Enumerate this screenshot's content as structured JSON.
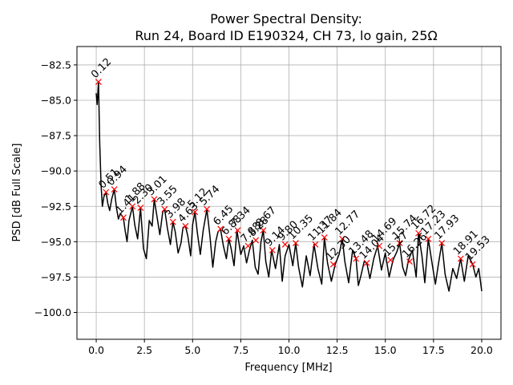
{
  "chart_data": {
    "type": "line",
    "title": "Power Spectral Density:",
    "subtitle": "Run 24, Board ID E190324, CH 73, lo gain, 25Ω",
    "xlabel": "Frequency [MHz]",
    "ylabel": "PSD [dB Full Scale]",
    "xlim": [
      -1.0,
      21.0
    ],
    "ylim": [
      -101.9,
      -81.2
    ],
    "xticks": [
      0.0,
      2.5,
      5.0,
      7.5,
      10.0,
      12.5,
      15.0,
      17.5,
      20.0
    ],
    "xtick_labels": [
      "0.0",
      "2.5",
      "5.0",
      "7.5",
      "10.0",
      "12.5",
      "15.0",
      "17.5",
      "20.0"
    ],
    "yticks": [
      -82.5,
      -85.0,
      -87.5,
      -90.0,
      -92.5,
      -95.0,
      -97.5,
      -100.0
    ],
    "ytick_labels": [
      "−82.5",
      "−85.0",
      "−87.5",
      "−90.0",
      "−92.5",
      "−95.0",
      "−97.5",
      "−100.0"
    ],
    "grid": true,
    "line_color": "#000000",
    "marker_color": "#ff0000",
    "series": [
      {
        "x": [
          0.0,
          0.05,
          0.12,
          0.18,
          0.25,
          0.32,
          0.4,
          0.51,
          0.6,
          0.7,
          0.8,
          0.94,
          1.05,
          1.15,
          1.25,
          1.41,
          1.5,
          1.6,
          1.7,
          1.88,
          2.0,
          2.15,
          2.3,
          2.45,
          2.6,
          2.75,
          2.9,
          3.01,
          3.15,
          3.3,
          3.45,
          3.55,
          3.7,
          3.85,
          3.98,
          4.1,
          4.25,
          4.4,
          4.5,
          4.63,
          4.75,
          4.9,
          5.0,
          5.12,
          5.25,
          5.4,
          5.55,
          5.74,
          5.9,
          6.05,
          6.2,
          6.32,
          6.45,
          6.6,
          6.75,
          6.88,
          7.0,
          7.15,
          7.3,
          7.5,
          7.65,
          7.8,
          7.95,
          8.1,
          8.25,
          8.4,
          8.55,
          8.67,
          8.8,
          8.95,
          9.1,
          9.3,
          9.5,
          9.65,
          9.8,
          10.0,
          10.2,
          10.35,
          10.5,
          10.7,
          10.9,
          11.1,
          11.3,
          11.5,
          11.7,
          11.84,
          12.0,
          12.2,
          12.4,
          12.6,
          12.77,
          12.9,
          13.1,
          13.3,
          13.48,
          13.6,
          13.75,
          13.9,
          14.04,
          14.2,
          14.4,
          14.6,
          14.8,
          15.0,
          15.2,
          15.4,
          15.6,
          15.74,
          15.9,
          16.05,
          16.2,
          16.4,
          16.6,
          16.72,
          16.9,
          17.05,
          17.23,
          17.4,
          17.6,
          17.75,
          17.93,
          18.1,
          18.3,
          18.5,
          18.7,
          18.91,
          19.1,
          19.3,
          19.53,
          19.7,
          19.85,
          20.0
        ],
        "y": [
          -84.5,
          -85.3,
          -83.7,
          -88.0,
          -91.0,
          -92.5,
          -91.8,
          -91.5,
          -92.3,
          -92.8,
          -92.0,
          -91.3,
          -92.6,
          -93.4,
          -93.0,
          -93.3,
          -94.2,
          -95.0,
          -93.5,
          -92.5,
          -93.8,
          -94.8,
          -92.6,
          -95.5,
          -96.2,
          -93.5,
          -93.9,
          -92.0,
          -93.2,
          -94.5,
          -92.9,
          -92.7,
          -94.1,
          -95.2,
          -93.6,
          -94.3,
          -95.8,
          -95.1,
          -94.0,
          -93.9,
          -94.6,
          -96.0,
          -93.8,
          -92.9,
          -94.4,
          -95.9,
          -94.2,
          -92.7,
          -94.6,
          -96.8,
          -95.0,
          -94.3,
          -94.1,
          -95.3,
          -96.2,
          -94.8,
          -95.5,
          -96.7,
          -94.2,
          -95.9,
          -95.3,
          -96.5,
          -95.6,
          -94.9,
          -96.8,
          -97.3,
          -95.0,
          -94.2,
          -96.4,
          -97.5,
          -95.6,
          -96.9,
          -95.2,
          -97.8,
          -96.0,
          -95.2,
          -96.7,
          -95.1,
          -96.8,
          -98.2,
          -96.0,
          -97.4,
          -95.2,
          -96.9,
          -98.0,
          -94.7,
          -96.5,
          -97.8,
          -96.6,
          -95.9,
          -94.8,
          -96.4,
          -97.9,
          -95.6,
          -96.2,
          -98.1,
          -97.3,
          -96.4,
          -96.5,
          -97.6,
          -96.2,
          -95.3,
          -97.0,
          -95.8,
          -97.5,
          -96.3,
          -95.7,
          -95.1,
          -96.8,
          -97.4,
          -96.3,
          -95.6,
          -97.5,
          -94.4,
          -96.0,
          -97.9,
          -94.8,
          -96.3,
          -98.0,
          -96.6,
          -95.1,
          -97.3,
          -98.5,
          -96.9,
          -97.6,
          -96.2,
          -97.8,
          -96.0,
          -96.6,
          -97.5,
          -96.9,
          -98.5
        ]
      }
    ],
    "peaks": [
      {
        "label": "0.12",
        "x": 0.12,
        "y": -83.7
      },
      {
        "label": "0.51",
        "x": 0.51,
        "y": -91.5
      },
      {
        "label": "0.94",
        "x": 0.94,
        "y": -91.3
      },
      {
        "label": "1.41",
        "x": 1.41,
        "y": -93.3
      },
      {
        "label": "1.88",
        "x": 1.88,
        "y": -92.5
      },
      {
        "label": "2.30",
        "x": 2.3,
        "y": -92.6
      },
      {
        "label": "3.01",
        "x": 3.01,
        "y": -92.0
      },
      {
        "label": "3.55",
        "x": 3.55,
        "y": -92.7
      },
      {
        "label": "3.98",
        "x": 3.98,
        "y": -93.6
      },
      {
        "label": "4.63",
        "x": 4.63,
        "y": -93.9
      },
      {
        "label": "5.12",
        "x": 5.12,
        "y": -92.9
      },
      {
        "label": "5.74",
        "x": 5.74,
        "y": -92.7
      },
      {
        "label": "6.45",
        "x": 6.45,
        "y": -94.1
      },
      {
        "label": "6.88",
        "x": 6.88,
        "y": -94.8
      },
      {
        "label": "7.34",
        "x": 7.34,
        "y": -94.2
      },
      {
        "label": "7.88",
        "x": 7.88,
        "y": -95.3
      },
      {
        "label": "8.28",
        "x": 8.28,
        "y": -94.9
      },
      {
        "label": "8.67",
        "x": 8.67,
        "y": -94.2
      },
      {
        "label": "9.14",
        "x": 9.14,
        "y": -95.6
      },
      {
        "label": "9.80",
        "x": 9.8,
        "y": -95.2
      },
      {
        "label": "10.35",
        "x": 10.35,
        "y": -95.1
      },
      {
        "label": "11.37",
        "x": 11.37,
        "y": -95.2
      },
      {
        "label": "11.84",
        "x": 11.84,
        "y": -94.7
      },
      {
        "label": "12.30",
        "x": 12.3,
        "y": -96.6
      },
      {
        "label": "12.77",
        "x": 12.77,
        "y": -94.8
      },
      {
        "label": "13.48",
        "x": 13.48,
        "y": -96.2
      },
      {
        "label": "14.04",
        "x": 14.04,
        "y": -96.5
      },
      {
        "label": "14.69",
        "x": 14.69,
        "y": -95.3
      },
      {
        "label": "15.27",
        "x": 15.27,
        "y": -96.3
      },
      {
        "label": "15.74",
        "x": 15.74,
        "y": -95.1
      },
      {
        "label": "16.26",
        "x": 16.26,
        "y": -96.4
      },
      {
        "label": "16.72",
        "x": 16.72,
        "y": -94.4
      },
      {
        "label": "17.23",
        "x": 17.23,
        "y": -94.8
      },
      {
        "label": "17.93",
        "x": 17.93,
        "y": -95.1
      },
      {
        "label": "18.91",
        "x": 18.91,
        "y": -96.2
      },
      {
        "label": "19.53",
        "x": 19.53,
        "y": -96.6
      }
    ]
  }
}
